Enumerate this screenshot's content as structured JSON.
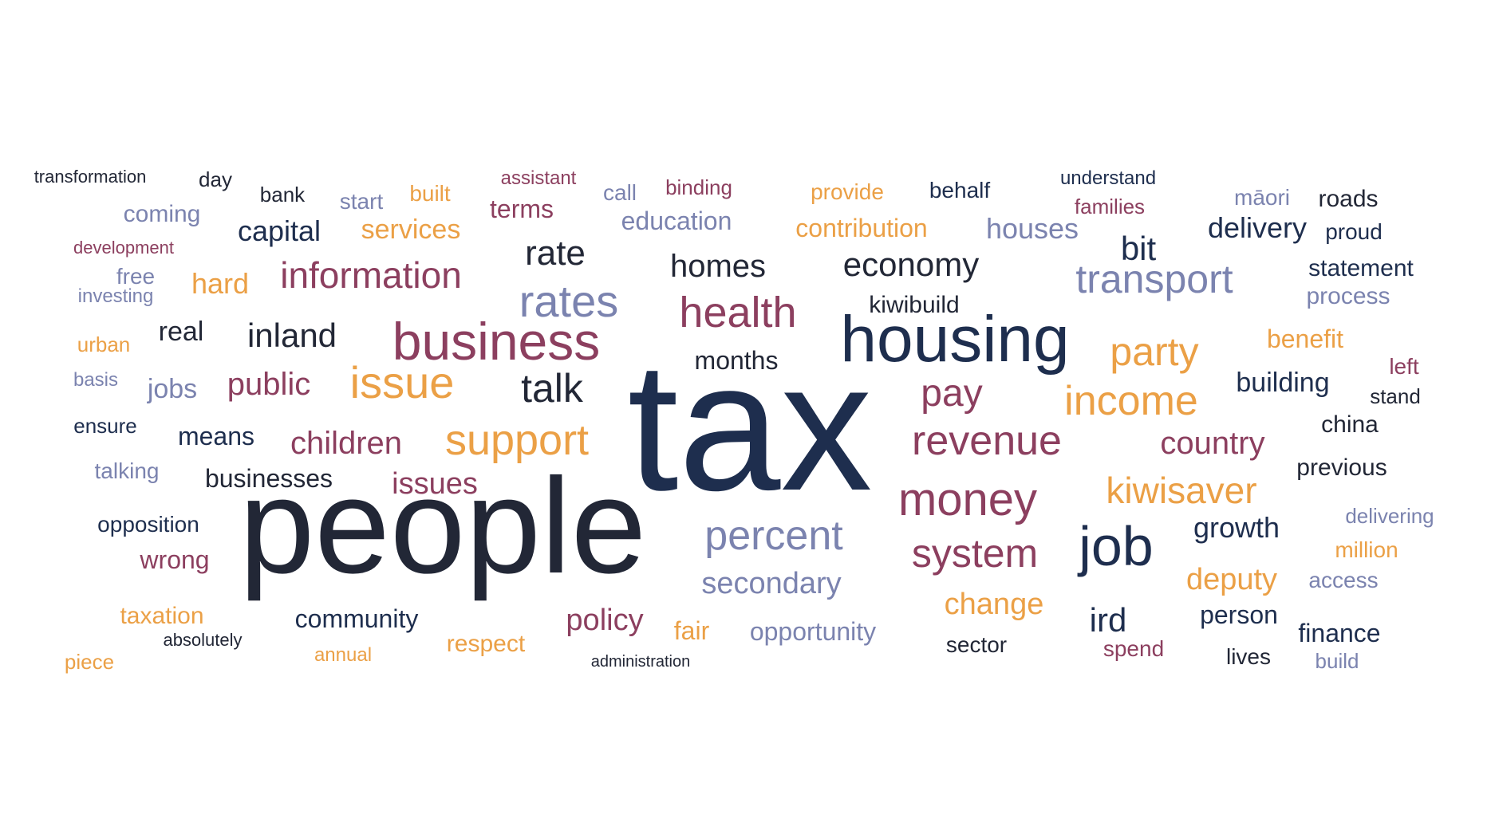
{
  "palette": {
    "navy": "#1e2e4e",
    "dark": "#222736",
    "maroon": "#8c3f5f",
    "orange": "#eba046",
    "slate": "#7b83af"
  },
  "words": [
    {
      "text": "tax",
      "color": "navy"
    },
    {
      "text": "people",
      "color": "dark"
    },
    {
      "text": "housing",
      "color": "navy"
    },
    {
      "text": "business",
      "color": "maroon"
    },
    {
      "text": "issue",
      "color": "orange"
    },
    {
      "text": "support",
      "color": "orange"
    },
    {
      "text": "rates",
      "color": "slate"
    },
    {
      "text": "health",
      "color": "maroon"
    },
    {
      "text": "income",
      "color": "orange"
    },
    {
      "text": "revenue",
      "color": "maroon"
    },
    {
      "text": "money",
      "color": "maroon"
    },
    {
      "text": "job",
      "color": "navy"
    },
    {
      "text": "system",
      "color": "maroon"
    },
    {
      "text": "percent",
      "color": "slate"
    },
    {
      "text": "party",
      "color": "orange"
    },
    {
      "text": "transport",
      "color": "slate"
    },
    {
      "text": "information",
      "color": "maroon"
    },
    {
      "text": "economy",
      "color": "dark"
    },
    {
      "text": "homes",
      "color": "dark"
    },
    {
      "text": "talk",
      "color": "dark"
    },
    {
      "text": "pay",
      "color": "maroon"
    },
    {
      "text": "kiwisaver",
      "color": "orange"
    },
    {
      "text": "rate",
      "color": "dark"
    },
    {
      "text": "public",
      "color": "maroon"
    },
    {
      "text": "inland",
      "color": "dark"
    },
    {
      "text": "children",
      "color": "maroon"
    },
    {
      "text": "country",
      "color": "maroon"
    },
    {
      "text": "secondary",
      "color": "slate"
    },
    {
      "text": "bit",
      "color": "navy"
    },
    {
      "text": "houses",
      "color": "slate"
    },
    {
      "text": "delivery",
      "color": "navy"
    },
    {
      "text": "services",
      "color": "orange"
    },
    {
      "text": "capital",
      "color": "navy"
    },
    {
      "text": "hard",
      "color": "orange"
    },
    {
      "text": "issues",
      "color": "maroon"
    },
    {
      "text": "change",
      "color": "orange"
    },
    {
      "text": "deputy",
      "color": "orange"
    },
    {
      "text": "growth",
      "color": "navy"
    },
    {
      "text": "policy",
      "color": "maroon"
    },
    {
      "text": "ird",
      "color": "navy"
    },
    {
      "text": "building",
      "color": "navy"
    },
    {
      "text": "benefit",
      "color": "orange"
    },
    {
      "text": "months",
      "color": "dark"
    },
    {
      "text": "real",
      "color": "dark"
    },
    {
      "text": "jobs",
      "color": "slate"
    },
    {
      "text": "means",
      "color": "navy"
    },
    {
      "text": "businesses",
      "color": "dark"
    },
    {
      "text": "education",
      "color": "slate"
    },
    {
      "text": "contribution",
      "color": "orange"
    },
    {
      "text": "coming",
      "color": "slate"
    },
    {
      "text": "terms",
      "color": "maroon"
    },
    {
      "text": "community",
      "color": "navy"
    },
    {
      "text": "opportunity",
      "color": "slate"
    },
    {
      "text": "respect",
      "color": "orange"
    },
    {
      "text": "fair",
      "color": "orange"
    },
    {
      "text": "person",
      "color": "navy"
    },
    {
      "text": "finance",
      "color": "navy"
    },
    {
      "text": "statement",
      "color": "navy"
    },
    {
      "text": "process",
      "color": "slate"
    },
    {
      "text": "previous",
      "color": "dark"
    },
    {
      "text": "china",
      "color": "dark"
    },
    {
      "text": "kiwibuild",
      "color": "dark"
    },
    {
      "text": "wrong",
      "color": "maroon"
    },
    {
      "text": "taxation",
      "color": "orange"
    },
    {
      "text": "talking",
      "color": "slate"
    },
    {
      "text": "opposition",
      "color": "navy"
    },
    {
      "text": "ensure",
      "color": "navy"
    },
    {
      "text": "roads",
      "color": "dark"
    },
    {
      "text": "proud",
      "color": "navy"
    },
    {
      "text": "māori",
      "color": "slate"
    },
    {
      "text": "families",
      "color": "maroon"
    },
    {
      "text": "understand",
      "color": "navy"
    },
    {
      "text": "behalf",
      "color": "navy"
    },
    {
      "text": "provide",
      "color": "orange"
    },
    {
      "text": "binding",
      "color": "maroon"
    },
    {
      "text": "call",
      "color": "slate"
    },
    {
      "text": "assistant",
      "color": "maroon"
    },
    {
      "text": "built",
      "color": "orange"
    },
    {
      "text": "start",
      "color": "slate"
    },
    {
      "text": "bank",
      "color": "dark"
    },
    {
      "text": "day",
      "color": "dark"
    },
    {
      "text": "transformation",
      "color": "dark"
    },
    {
      "text": "development",
      "color": "maroon"
    },
    {
      "text": "free",
      "color": "slate"
    },
    {
      "text": "investing",
      "color": "slate"
    },
    {
      "text": "urban",
      "color": "orange"
    },
    {
      "text": "basis",
      "color": "slate"
    },
    {
      "text": "left",
      "color": "maroon"
    },
    {
      "text": "stand",
      "color": "dark"
    },
    {
      "text": "delivering",
      "color": "slate"
    },
    {
      "text": "million",
      "color": "orange"
    },
    {
      "text": "access",
      "color": "slate"
    },
    {
      "text": "spend",
      "color": "maroon"
    },
    {
      "text": "lives",
      "color": "dark"
    },
    {
      "text": "build",
      "color": "slate"
    },
    {
      "text": "sector",
      "color": "dark"
    },
    {
      "text": "administration",
      "color": "dark"
    },
    {
      "text": "annual",
      "color": "orange"
    },
    {
      "text": "absolutely",
      "color": "dark"
    },
    {
      "text": "piece",
      "color": "orange"
    }
  ]
}
